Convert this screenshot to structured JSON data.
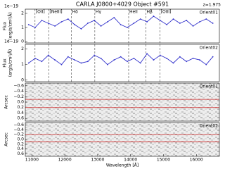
{
  "title": "CARLA J0800+4029 Object #591",
  "redshift": "z=1.975",
  "emission_lines": [
    {
      "value": 11095,
      "label": "[OII]"
    },
    {
      "value": 11514,
      "label": "[NeIII]"
    },
    {
      "value": 12204,
      "label": "Hδ"
    },
    {
      "value": 12913,
      "label": "Hγ"
    },
    {
      "value": 13942,
      "label": "HeII"
    },
    {
      "value": 14465,
      "label": "Hβ"
    },
    {
      "value": 14896,
      "label": "[OIII]"
    }
  ],
  "chart_data": [
    {
      "type": "line",
      "label": "Orient01",
      "offset_label": "1e−19",
      "ylabel": "Flux",
      "yunits": "(erg/s/cm²/Å)",
      "color": "#3333cc",
      "x": [
        10900,
        11100,
        11300,
        11500,
        11700,
        11900,
        12100,
        12300,
        12500,
        12700,
        12900,
        13100,
        13300,
        13500,
        13700,
        13900,
        14100,
        14300,
        14500,
        14700,
        14900,
        15100,
        15300,
        15500,
        15700,
        15900,
        16100,
        16300,
        16500
      ],
      "values": [
        1.2,
        1.0,
        1.5,
        1.3,
        1.1,
        1.4,
        1.6,
        1.2,
        0.9,
        1.3,
        1.5,
        1.1,
        1.4,
        1.7,
        1.2,
        1.0,
        1.3,
        1.6,
        1.4,
        1.8,
        1.5,
        1.2,
        1.6,
        1.3,
        1.5,
        1.1,
        1.4,
        1.6,
        1.3
      ],
      "xlim": [
        10800,
        16700
      ],
      "ylim": [
        -0.1,
        2.3
      ],
      "yticks": [
        0,
        1,
        2
      ]
    },
    {
      "type": "line",
      "label": "Orient02",
      "offset_label": "1e−19",
      "ylabel": "Flux",
      "yunits": "(erg/s/cm²/Å)",
      "color": "#3333cc",
      "x": [
        10900,
        11100,
        11300,
        11500,
        11700,
        11900,
        12100,
        12300,
        12500,
        12700,
        12900,
        13100,
        13300,
        13500,
        13700,
        13900,
        14100,
        14300,
        14500,
        14700,
        14900,
        15100,
        15300,
        15500,
        15700,
        15900,
        16100,
        16300,
        16500
      ],
      "values": [
        1.1,
        1.4,
        1.2,
        1.6,
        1.3,
        1.0,
        1.5,
        1.3,
        1.1,
        1.2,
        1.6,
        1.4,
        1.0,
        1.3,
        1.5,
        1.2,
        1.4,
        1.1,
        1.7,
        1.3,
        1.6,
        1.4,
        1.1,
        1.5,
        1.2,
        1.4,
        1.3,
        1.0,
        1.5
      ],
      "xlim": [
        10800,
        16700
      ],
      "ylim": [
        -0.1,
        2.3
      ],
      "yticks": [
        0,
        1,
        2
      ]
    },
    {
      "type": "image",
      "label": "Orient01",
      "ylabel": "Arcsec",
      "xlim": [
        10800,
        16700
      ],
      "ylim": [
        -0.7,
        0.7
      ],
      "inverted": true,
      "yticks": [
        {
          "value": -0.6,
          "label": "−0.6"
        },
        {
          "value": -0.4,
          "label": "−0.4"
        },
        {
          "value": -0.2,
          "label": "−0.2"
        },
        {
          "value": 0,
          "label": "0.0"
        },
        {
          "value": 0.2,
          "label": "0.2"
        },
        {
          "value": 0.4,
          "label": "0.4"
        },
        {
          "value": 0.6,
          "label": "0.6"
        }
      ],
      "apertures": [
        -0.1,
        0.2
      ],
      "aperture_color": "#cc2222"
    },
    {
      "type": "image",
      "label": "Orient02",
      "ylabel": "Arcsec",
      "xlim": [
        10800,
        16700
      ],
      "ylim": [
        -0.7,
        0.7
      ],
      "inverted": true,
      "yticks": [
        {
          "value": -0.6,
          "label": "−0.6"
        },
        {
          "value": -0.4,
          "label": "−0.4"
        },
        {
          "value": -0.2,
          "label": "−0.2"
        },
        {
          "value": 0,
          "label": "0.0"
        },
        {
          "value": 0.2,
          "label": "0.2"
        },
        {
          "value": 0.4,
          "label": "0.4"
        },
        {
          "value": 0.6,
          "label": "0.6"
        }
      ],
      "apertures": [
        -0.2,
        0.1
      ],
      "aperture_color": "#cc2222",
      "xticks": [
        11000,
        12000,
        13000,
        14000,
        15000,
        16000
      ],
      "xlabel": "Wavelength [Å]"
    }
  ]
}
